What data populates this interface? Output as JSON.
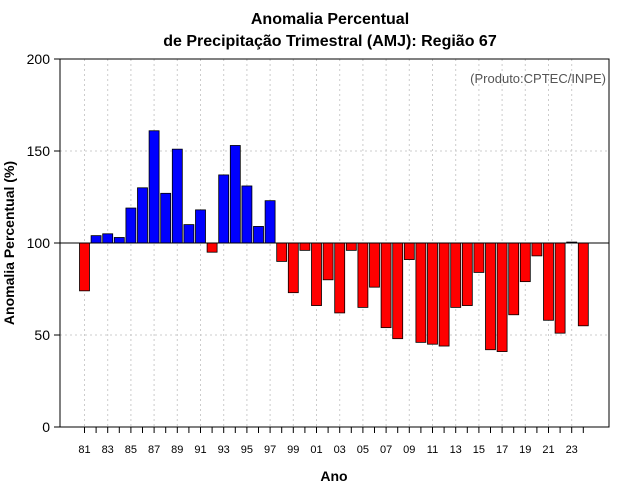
{
  "chart_data": {
    "type": "bar",
    "title": [
      "Anomalia Percentual",
      "de Precipitação Trimestral (AMJ): Região 67"
    ],
    "xlabel": "Ano",
    "ylabel": "Anomalia Percentual (%)",
    "credit": "(Produto:CPTEC/INPE)",
    "ylim": [
      0,
      200
    ],
    "yticks": [
      0,
      50,
      100,
      150,
      200
    ],
    "baseline": 100,
    "grid": true,
    "colors": {
      "above": "#0000ff",
      "below": "#ff0000",
      "edge": "#000000",
      "grid": "#cccccc"
    },
    "categories": [
      "81",
      "82",
      "83",
      "84",
      "85",
      "86",
      "87",
      "88",
      "89",
      "90",
      "91",
      "92",
      "93",
      "94",
      "95",
      "96",
      "97",
      "98",
      "99",
      "00",
      "01",
      "02",
      "03",
      "04",
      "05",
      "06",
      "07",
      "08",
      "09",
      "10",
      "11",
      "12",
      "13",
      "14",
      "15",
      "16",
      "17",
      "18",
      "19",
      "20",
      "21",
      "22",
      "23",
      "24"
    ],
    "xtick_labels": [
      "81",
      "83",
      "85",
      "87",
      "89",
      "91",
      "93",
      "95",
      "97",
      "99",
      "01",
      "03",
      "05",
      "07",
      "09",
      "11",
      "13",
      "15",
      "17",
      "19",
      "21",
      "23"
    ],
    "values": [
      74,
      104,
      105,
      103,
      119,
      130,
      161,
      127,
      151,
      110,
      118,
      95,
      137,
      153,
      131,
      109,
      123,
      90,
      73,
      96,
      66,
      80,
      62,
      96,
      65,
      76,
      54,
      48,
      91,
      46,
      45,
      44,
      65,
      66,
      84,
      42,
      41,
      61,
      79,
      93,
      58,
      51,
      100.5,
      55
    ]
  }
}
